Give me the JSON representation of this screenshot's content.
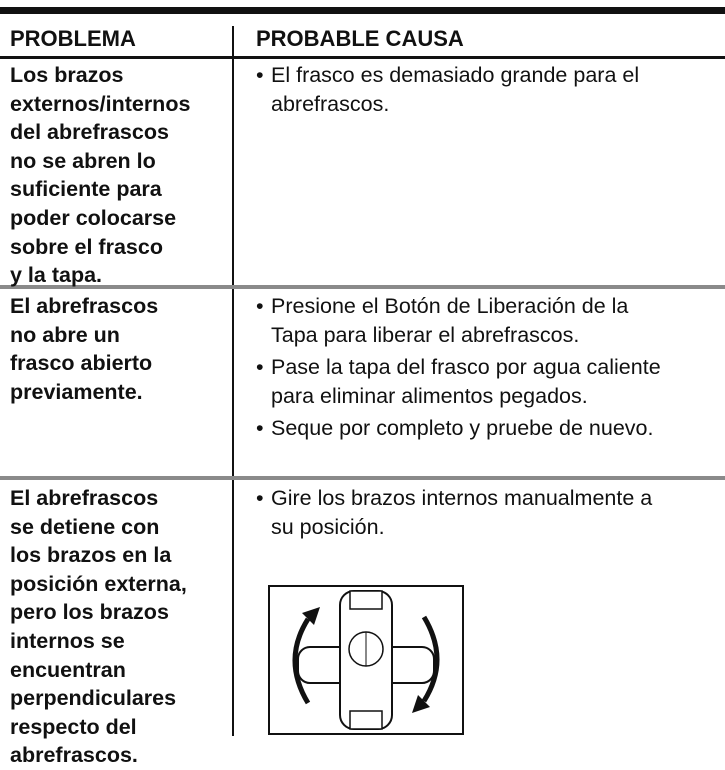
{
  "header": {
    "problem": "PROBLEMA",
    "cause": "PROBABLE CAUSA"
  },
  "rows": [
    {
      "problem": [
        "Los brazos",
        "externos/internos",
        "del abrefrascos",
        "no se abren lo",
        "suficiente para",
        "poder colocarse",
        "sobre el frasco",
        "y la tapa."
      ],
      "causes": [
        [
          "El frasco es demasiado grande para el",
          "abrefrascos."
        ]
      ]
    },
    {
      "problem": [
        "El abrefrascos",
        "no abre un",
        "frasco abierto",
        "previamente."
      ],
      "causes": [
        [
          "Presione el Botón de Liberación de la",
          "Tapa para liberar el abrefrascos."
        ],
        [
          "Pase la tapa del frasco por agua caliente",
          "para eliminar alimentos pegados."
        ],
        [
          "Seque por completo y pruebe de nuevo."
        ]
      ]
    },
    {
      "problem": [
        "El abrefrascos",
        "se detiene con",
        "los brazos en la",
        "posición externa,",
        "pero los brazos",
        "internos se",
        "encuentran",
        "perpendiculares",
        "respecto del",
        "abrefrascos."
      ],
      "causes": [
        [
          "Gire los brazos internos manualmente a",
          "su posición."
        ]
      ]
    }
  ]
}
